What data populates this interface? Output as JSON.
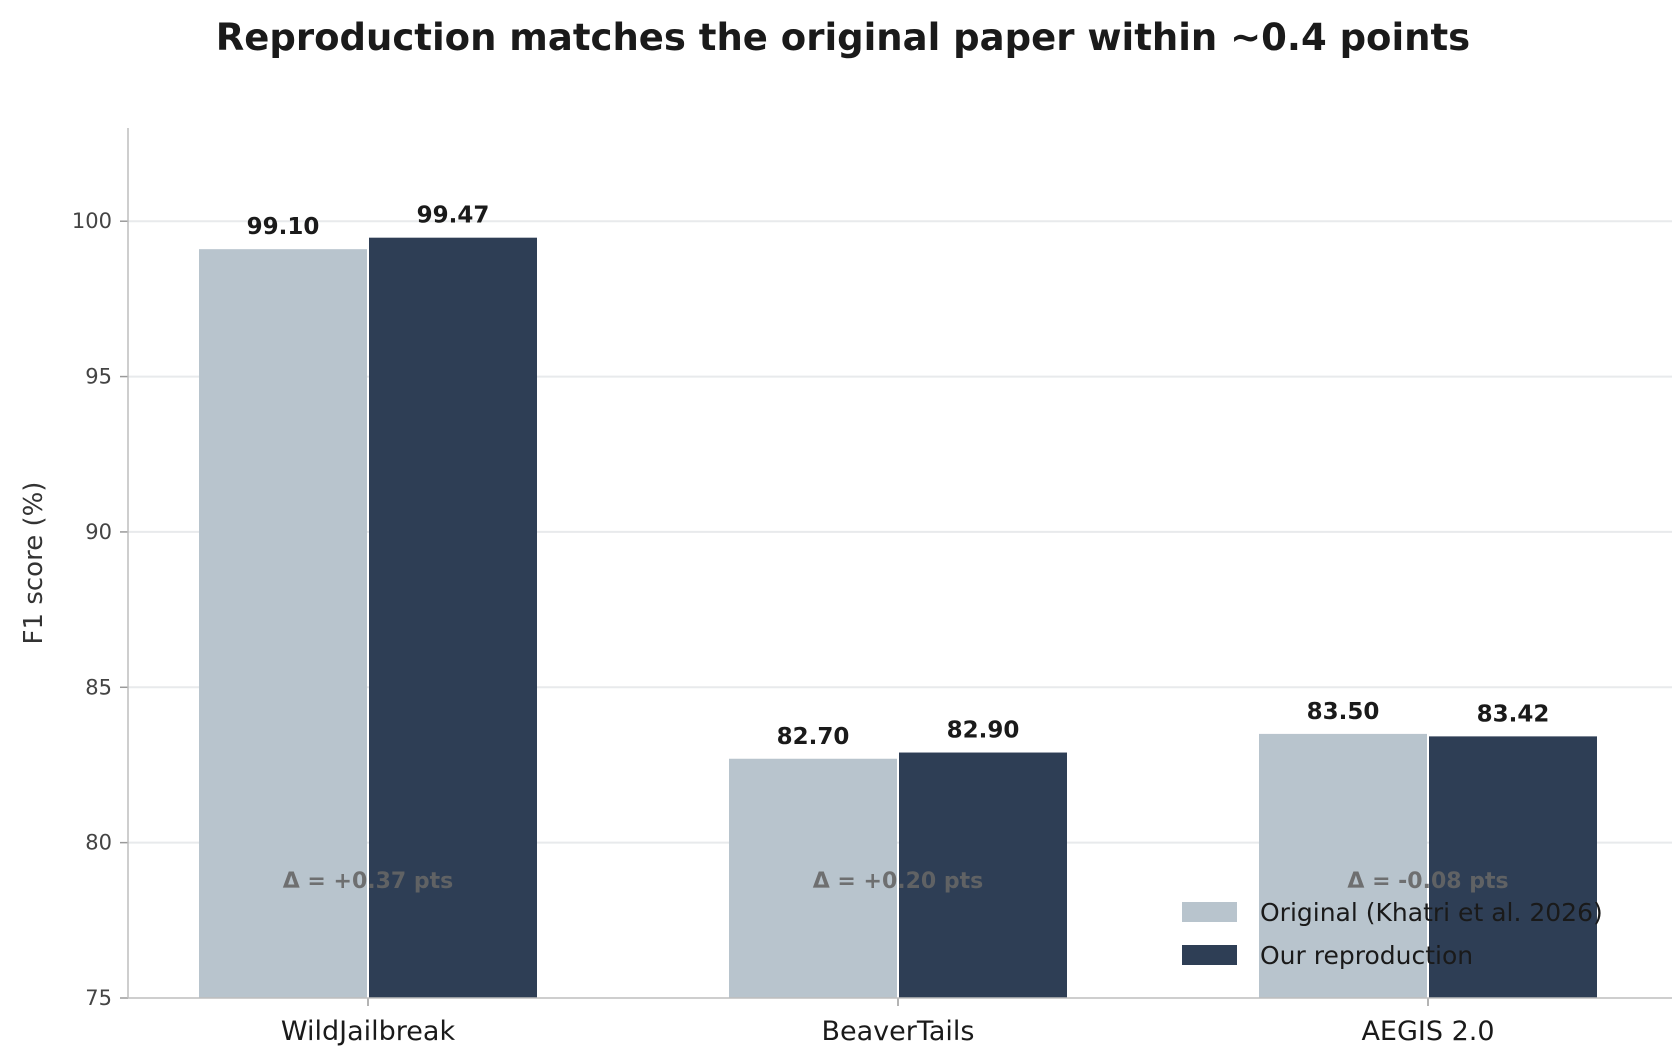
{
  "chart_data": {
    "type": "bar",
    "title": "Reproduction matches the original paper within ~0.4 points",
    "xlabel": "",
    "ylabel": "F1 score (%)",
    "ylim": [
      75,
      103
    ],
    "yticks": [
      75,
      80,
      85,
      90,
      95,
      100
    ],
    "grid": "horizontal",
    "legend_position": "lower-right",
    "categories": [
      "WildJailbreak",
      "BeaverTails",
      "AEGIS 2.0"
    ],
    "series": [
      {
        "name": "Original (Khatri et al. 2026)",
        "color": "#b8c4cd",
        "values": [
          99.1,
          82.7,
          83.5
        ],
        "labels": [
          "99.10",
          "82.70",
          "83.50"
        ]
      },
      {
        "name": "Our reproduction",
        "color": "#2e3e55",
        "values": [
          99.47,
          82.9,
          83.42
        ],
        "labels": [
          "99.47",
          "82.90",
          "83.42"
        ]
      }
    ],
    "annotations": [
      "Δ = +0.37 pts",
      "Δ = +0.20 pts",
      "Δ = -0.08 pts"
    ]
  }
}
